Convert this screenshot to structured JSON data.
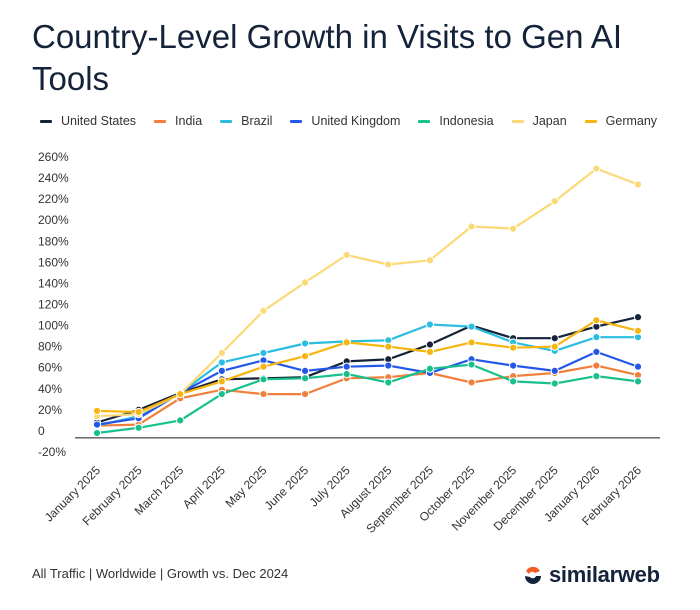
{
  "title": "Country-Level Growth in Visits to Gen AI Tools",
  "footer_note": "All Traffic | Worldwide | Growth vs. Dec 2024",
  "brand": {
    "name": "similarweb",
    "icon": "similarweb-logo-icon"
  },
  "colors": {
    "United States": "#15233a",
    "India": "#f07f3c",
    "Brazil": "#2bbde0",
    "United Kingdom": "#2457e8",
    "Indonesia": "#17c08d",
    "Japan": "#fbd976",
    "Germany": "#f8b510",
    "brand_accent": "#f45d26"
  },
  "chart_data": {
    "type": "line",
    "title": "Country-Level Growth in Visits to Gen AI Tools",
    "xlabel": "",
    "ylabel": "",
    "legend_position": "top",
    "grid": false,
    "ylim": [
      -20,
      260
    ],
    "yticks": [
      "260%",
      "240%",
      "220%",
      "200%",
      "180%",
      "160%",
      "140%",
      "120%",
      "100%",
      "80%",
      "60%",
      "40%",
      "20%",
      "0",
      "-20%"
    ],
    "ytick_values": [
      260,
      240,
      220,
      200,
      180,
      160,
      140,
      120,
      100,
      80,
      60,
      40,
      20,
      0,
      -20
    ],
    "categories": [
      "January 2025",
      "February 2025",
      "March 2025",
      "April 2025",
      "May 2025",
      "June 2025",
      "July 2025",
      "August 2025",
      "September 2025",
      "October 2025",
      "November 2025",
      "December 2025",
      "January 2026",
      "February 2026"
    ],
    "series": [
      {
        "name": "United States",
        "values": [
          8,
          20,
          36,
          49,
          50,
          51,
          66,
          68,
          82,
          100,
          88,
          88,
          99,
          108
        ]
      },
      {
        "name": "India",
        "values": [
          5,
          6,
          31,
          39,
          35,
          35,
          50,
          51,
          55,
          46,
          52,
          55,
          62,
          53
        ]
      },
      {
        "name": "Brazil",
        "values": [
          5,
          14,
          36,
          65,
          74,
          83,
          85,
          86,
          101,
          99,
          84,
          76,
          89,
          89
        ]
      },
      {
        "name": "United Kingdom",
        "values": [
          6,
          12,
          36,
          57,
          67,
          57,
          61,
          62,
          55,
          68,
          62,
          57,
          75,
          61
        ]
      },
      {
        "name": "Indonesia",
        "values": [
          -2,
          3,
          10,
          35,
          49,
          50,
          54,
          46,
          59,
          63,
          47,
          45,
          52,
          47
        ]
      },
      {
        "name": "Japan",
        "values": [
          14,
          16,
          35,
          74,
          114,
          141,
          167,
          158,
          162,
          194,
          192,
          218,
          249,
          234
        ]
      },
      {
        "name": "Germany",
        "values": [
          19,
          18,
          35,
          47,
          61,
          71,
          84,
          80,
          75,
          84,
          79,
          80,
          105,
          95
        ]
      }
    ]
  }
}
